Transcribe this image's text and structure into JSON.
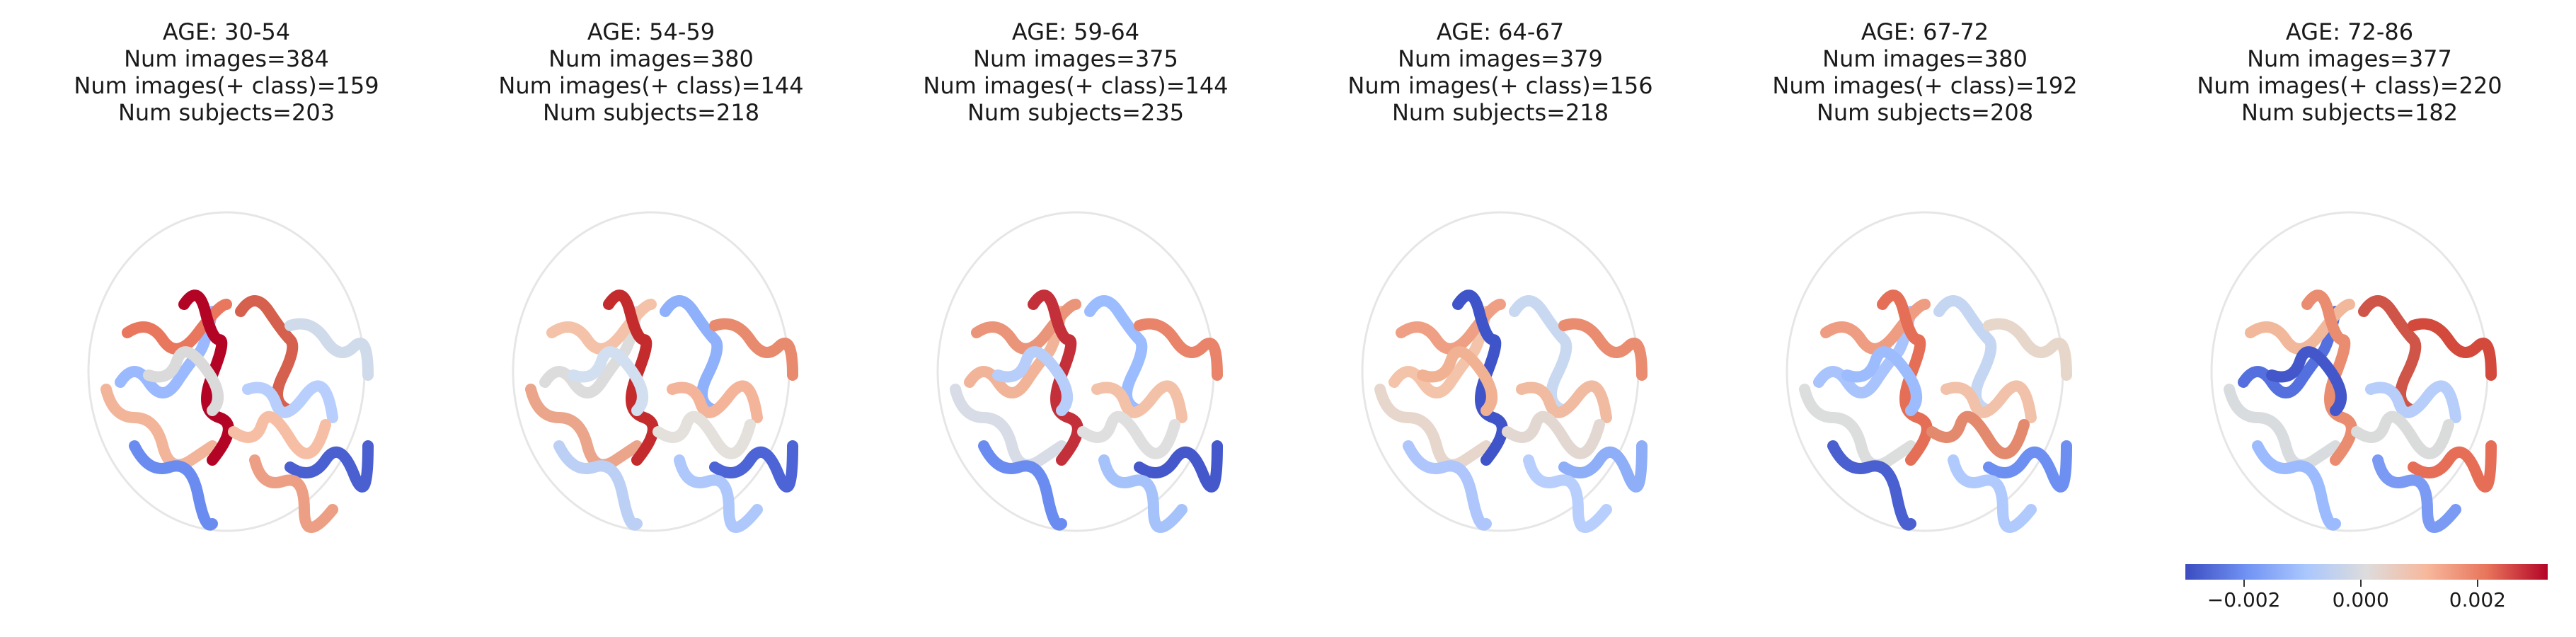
{
  "panels": [
    {
      "age": "AGE: 30-54",
      "images": "Num images=384",
      "pos_images": "Num images(+ class)=159",
      "subjects": "Num subjects=203",
      "colors": [
        "#9bb9ff",
        "#e9775e",
        "#f2b59a",
        "#6a8cf0",
        "#b40426",
        "#dadada",
        "#d4604d",
        "#4a5fd0",
        "#b8cffe",
        "#ec9f85",
        "#cfdaea",
        "#f6bfa5"
      ]
    },
    {
      "age": "AGE: 54-59",
      "images": "Num images=380",
      "pos_images": "Num images(+ class)=144",
      "subjects": "Num subjects=218",
      "colors": [
        "#dcdcdc",
        "#f4c2a8",
        "#eaa58a",
        "#bcd0f5",
        "#c32b2d",
        "#d2dff0",
        "#8fb0fb",
        "#4d64d6",
        "#f4b49a",
        "#aec8fc",
        "#e88a6e",
        "#e4e0dc"
      ]
    },
    {
      "age": "AGE: 59-64",
      "images": "Num images=375",
      "pos_images": "Num images(+ class)=144",
      "subjects": "Num subjects=235",
      "colors": [
        "#f1b498",
        "#ea957a",
        "#d7dce6",
        "#6a8cf0",
        "#c4303a",
        "#b7cdfa",
        "#9bbcff",
        "#4458cb",
        "#f3c1a7",
        "#a5c2fb",
        "#e9846a",
        "#dfdfe0"
      ]
    },
    {
      "age": "AGE: 64-67",
      "images": "Num images=379",
      "pos_images": "Num images(+ class)=156",
      "subjects": "Num subjects=218",
      "colors": [
        "#f4c4aa",
        "#ef9f83",
        "#e7d6cc",
        "#aec6fb",
        "#3f54c8",
        "#f1b294",
        "#c9d8f1",
        "#8eaef8",
        "#f0bba1",
        "#b8cffd",
        "#e98c70",
        "#e3d8d1"
      ]
    },
    {
      "age": "AGE: 67-72",
      "images": "Num images=380",
      "pos_images": "Num images(+ class)=192",
      "subjects": "Num subjects=208",
      "colors": [
        "#a9c4fd",
        "#ee9d82",
        "#dcdddd",
        "#4a5fd0",
        "#e46f56",
        "#9dbcfe",
        "#c5d6f3",
        "#6d8ff1",
        "#f1c2a9",
        "#b1cafd",
        "#e7d7cb",
        "#e3896d"
      ]
    },
    {
      "age": "AGE: 72-86",
      "images": "Num images=377",
      "pos_images": "Num images(+ class)=220",
      "subjects": "Num subjects=182",
      "colors": [
        "#5470de",
        "#f2b89c",
        "#d9dcdf",
        "#9bbbfe",
        "#e98c70",
        "#4457ca",
        "#cf5548",
        "#e66e57",
        "#b7cdfa",
        "#7a9af4",
        "#d34a3d",
        "#dadcdc"
      ]
    }
  ],
  "colorbar": {
    "min": -0.003,
    "max": 0.0032,
    "ticks": [
      {
        "value": -0.002,
        "label": "−0.002"
      },
      {
        "value": 0.0,
        "label": "0.000"
      },
      {
        "value": 0.002,
        "label": "0.002"
      }
    ]
  }
}
